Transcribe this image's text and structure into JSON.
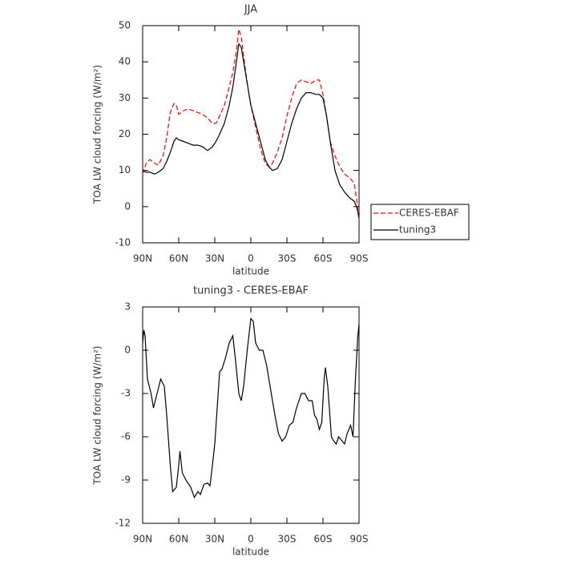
{
  "chart_data": [
    {
      "type": "line",
      "title": "JJA",
      "xlabel": "latitude",
      "ylabel": "TOA LW cloud forcing (W/m²)",
      "x": [
        90,
        87,
        84,
        80,
        77,
        73,
        70,
        67,
        64,
        62,
        60,
        56,
        52,
        48,
        44,
        40,
        36,
        32,
        29,
        26,
        22,
        18,
        15,
        12,
        10,
        8,
        5,
        2,
        0,
        -4,
        -8,
        -12,
        -15,
        -18,
        -22,
        -26,
        -30,
        -34,
        -38,
        -42,
        -46,
        -50,
        -54,
        -57,
        -60,
        -63,
        -66,
        -70,
        -74,
        -78,
        -82,
        -86,
        -88,
        -90
      ],
      "series": [
        {
          "name": "CERES-EBAF",
          "color": "#ff0000",
          "style": "dashed",
          "values": [
            9,
            12,
            13,
            12,
            11.5,
            14,
            19,
            26,
            28.5,
            28,
            25.5,
            26.5,
            27,
            26.5,
            26,
            25.5,
            24.5,
            23,
            23,
            25,
            28,
            33,
            37,
            43,
            49,
            47,
            39,
            32,
            28,
            22,
            16,
            12,
            11,
            12,
            15,
            19,
            25,
            30,
            34,
            35,
            34.5,
            34,
            35,
            35,
            31,
            25,
            18,
            14,
            11,
            9,
            8,
            6.5,
            2,
            -4
          ]
        },
        {
          "name": "tuning3",
          "color": "#000000",
          "style": "solid",
          "values": [
            10,
            9.5,
            9.5,
            9,
            9.5,
            10.5,
            12.5,
            15,
            18,
            19,
            18.5,
            18,
            17.5,
            17,
            17,
            16.5,
            15.5,
            16.5,
            18,
            20,
            23,
            28,
            33,
            40,
            45,
            44,
            38,
            32,
            28,
            23,
            18,
            13,
            11,
            10,
            10.5,
            13,
            18,
            23,
            27,
            30,
            31.5,
            31.5,
            31,
            31,
            30,
            25,
            18,
            10,
            6,
            4,
            2.5,
            1.5,
            0,
            -3
          ]
        }
      ],
      "xlim": [
        90,
        -90
      ],
      "xticks": [
        {
          "value": 90,
          "label": "90N"
        },
        {
          "value": 60,
          "label": "60N"
        },
        {
          "value": 30,
          "label": "30N"
        },
        0,
        {
          "value": -30,
          "label": "30S"
        },
        {
          "value": -60,
          "label": "60S"
        },
        {
          "value": -90,
          "label": "90S"
        }
      ],
      "ylim": [
        -10,
        50
      ],
      "yticks": [
        50,
        40,
        30,
        20,
        10,
        0,
        -10
      ],
      "legend": "right"
    },
    {
      "type": "line",
      "title": "tuning3 - CERES-EBAF",
      "xlabel": "latitude",
      "ylabel": "TOA LW cloud forcing (W/m²)",
      "x": [
        90,
        89,
        88,
        86,
        83,
        81,
        78,
        75,
        72,
        70,
        67,
        65,
        62,
        60,
        59,
        57,
        54,
        50,
        47,
        44,
        42,
        39,
        36,
        34,
        32,
        30,
        28,
        26,
        24,
        21,
        18,
        15,
        13,
        10,
        8,
        6,
        3,
        0,
        -2,
        -4,
        -7,
        -10,
        -13,
        -16,
        -20,
        -23,
        -26,
        -29,
        -32,
        -35,
        -38,
        -42,
        -45,
        -48,
        -51,
        -53,
        -55,
        -57,
        -59,
        -61,
        -62,
        -64,
        -67,
        -69,
        -71,
        -73,
        -75,
        -78,
        -80,
        -83,
        -85,
        -87,
        -89,
        -90
      ],
      "series": [
        {
          "color": "#000000",
          "style": "solid",
          "values": [
            0.5,
            1.4,
            1,
            -2,
            -3,
            -4,
            -3,
            -2,
            -2.5,
            -4.5,
            -8,
            -9.8,
            -9.5,
            -8,
            -7,
            -8.5,
            -9,
            -9.5,
            -10.2,
            -9.8,
            -10,
            -9.3,
            -9.2,
            -9.4,
            -8,
            -6.5,
            -4,
            -1.5,
            -1.3,
            -0.5,
            0.5,
            1,
            -0.5,
            -3,
            -3.5,
            -2.5,
            0,
            2.2,
            2,
            0.5,
            0,
            0,
            -1,
            -2.5,
            -4.5,
            -5.8,
            -6.3,
            -6,
            -5.2,
            -5,
            -4,
            -3,
            -3,
            -3.5,
            -3.5,
            -4.5,
            -4.8,
            -5.5,
            -5,
            -2,
            -1.2,
            -2.5,
            -6,
            -6.3,
            -6.5,
            -6,
            -6.2,
            -6.5,
            -5.8,
            -5.2,
            -6,
            -2,
            1,
            1.8
          ]
        }
      ],
      "xlim": [
        90,
        -90
      ],
      "xticks": [
        {
          "value": 90,
          "label": "90N"
        },
        {
          "value": 60,
          "label": "60N"
        },
        {
          "value": 30,
          "label": "30N"
        },
        0,
        {
          "value": -30,
          "label": "30S"
        },
        {
          "value": -60,
          "label": "60S"
        },
        {
          "value": -90,
          "label": "90S"
        }
      ],
      "ylim": [
        -12,
        3
      ],
      "yticks": [
        3,
        0,
        -3,
        -6,
        -9,
        -12
      ]
    }
  ]
}
